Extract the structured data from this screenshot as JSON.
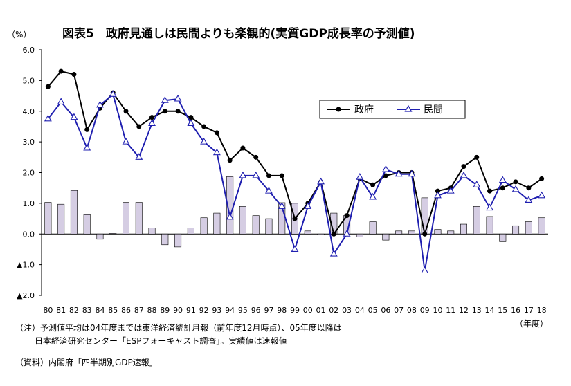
{
  "chart_data": {
    "type": "bar+line",
    "title": "図表5　政府見通しは民間よりも楽観的(実質GDP成長率の予測値)",
    "unit_label": "（%）",
    "x_unit_label": "（年度）",
    "categories": [
      "80",
      "81",
      "82",
      "83",
      "84",
      "85",
      "86",
      "87",
      "88",
      "89",
      "90",
      "91",
      "92",
      "93",
      "94",
      "95",
      "96",
      "97",
      "98",
      "99",
      "00",
      "01",
      "02",
      "03",
      "04",
      "05",
      "06",
      "07",
      "08",
      "09",
      "10",
      "11",
      "12",
      "13",
      "14",
      "15",
      "16",
      "17",
      "18"
    ],
    "ylim": [
      -2.0,
      6.0
    ],
    "yticks": [
      {
        "value": 6.0,
        "label": "6.0"
      },
      {
        "value": 5.0,
        "label": "5.0"
      },
      {
        "value": 4.0,
        "label": "4.0"
      },
      {
        "value": 3.0,
        "label": "3.0"
      },
      {
        "value": 2.0,
        "label": "2.0"
      },
      {
        "value": 1.0,
        "label": "1.0"
      },
      {
        "value": 0.0,
        "label": "0.0"
      },
      {
        "value": -1.0,
        "label": "▲1.0"
      },
      {
        "value": -2.0,
        "label": "▲2.0"
      }
    ],
    "grid": false,
    "legend_position": "right-middle",
    "series": [
      {
        "name": "政府",
        "kind": "line",
        "marker": "filled-circle",
        "color": "#000000",
        "values": [
          4.8,
          5.3,
          5.2,
          3.4,
          4.1,
          4.6,
          4.0,
          3.5,
          3.8,
          4.0,
          4.0,
          3.8,
          3.5,
          3.3,
          2.4,
          2.8,
          2.5,
          1.9,
          1.9,
          0.5,
          1.0,
          1.7,
          0.0,
          0.6,
          1.8,
          1.6,
          1.9,
          2.0,
          2.0,
          0.0,
          1.4,
          1.5,
          2.2,
          2.5,
          1.4,
          1.5,
          1.7,
          1.5,
          1.8
        ]
      },
      {
        "name": "民間",
        "kind": "line",
        "marker": "open-triangle",
        "color": "#1f1fb0",
        "values": [
          3.75,
          4.3,
          3.8,
          2.8,
          4.2,
          4.55,
          3.0,
          2.5,
          3.6,
          4.35,
          4.4,
          3.6,
          3.0,
          2.65,
          0.55,
          1.9,
          1.9,
          1.4,
          0.9,
          -0.5,
          0.9,
          1.7,
          -0.65,
          0.0,
          1.85,
          1.2,
          2.1,
          1.95,
          1.95,
          -1.2,
          1.25,
          1.4,
          1.9,
          1.6,
          0.85,
          1.75,
          1.45,
          1.1,
          1.25
        ]
      },
      {
        "kind": "bar",
        "color": "#d5cde3",
        "stroke": "#000000",
        "values": [
          1.03,
          0.97,
          1.42,
          0.63,
          -0.17,
          0.02,
          1.03,
          1.03,
          0.2,
          -0.35,
          -0.42,
          0.2,
          0.53,
          0.68,
          1.87,
          0.9,
          0.6,
          0.5,
          1.02,
          1.0,
          0.1,
          -0.03,
          0.68,
          0.6,
          -0.1,
          0.4,
          -0.2,
          0.1,
          0.1,
          1.18,
          0.15,
          0.1,
          0.32,
          0.9,
          0.57,
          -0.25,
          0.27,
          0.4,
          0.53
        ]
      }
    ]
  },
  "notes": {
    "line1": "（注）予測値平均は04年度までは東洋経済統計月報（前年度12月時点）、05年度以降は",
    "line2": "日本経済研究センター「ESPフォーキャスト調査」。実績値は速報値",
    "source": "（資料）内閣府「四半期別GDP速報」"
  }
}
